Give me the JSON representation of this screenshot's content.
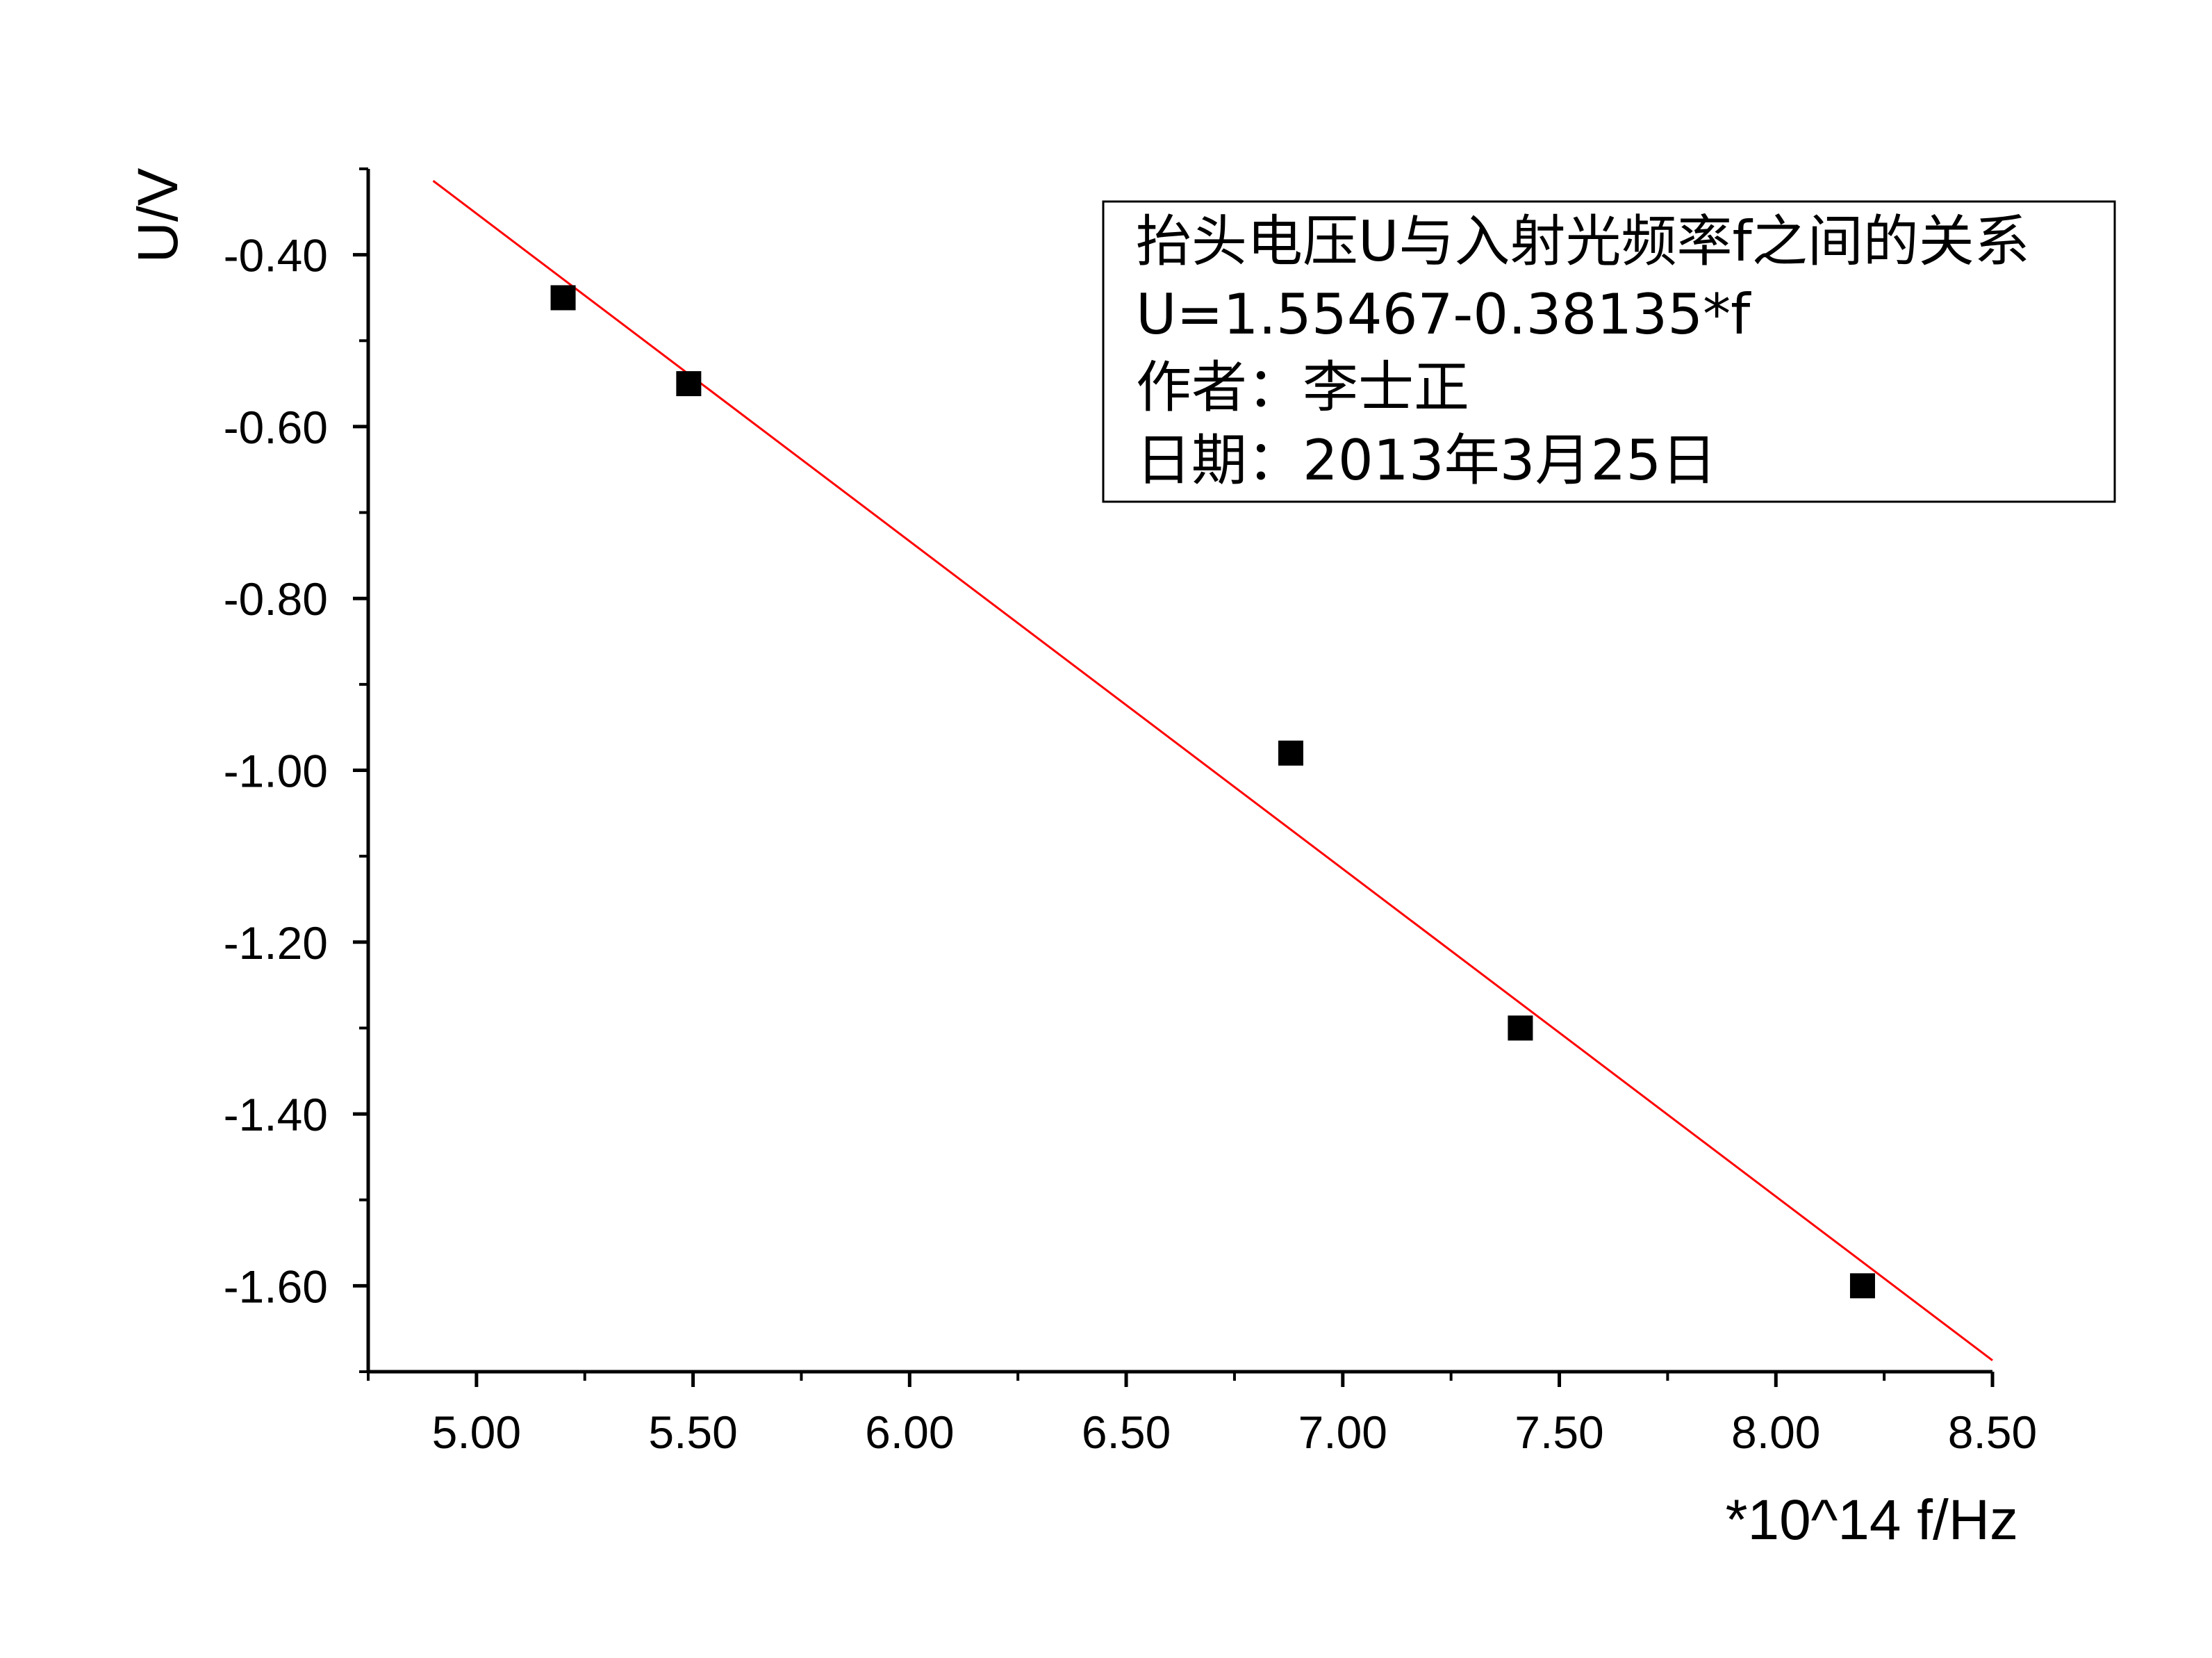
{
  "chart_data": {
    "type": "scatter",
    "xlabel": "*10^14 f/Hz",
    "ylabel": "U/V",
    "xlim": [
      4.75,
      8.5
    ],
    "ylim": [
      -1.7,
      -0.3
    ],
    "x_ticks": [
      "5.00",
      "5.50",
      "6.00",
      "6.50",
      "7.00",
      "7.50",
      "8.00",
      "8.50"
    ],
    "x_tick_values": [
      5.0,
      5.5,
      6.0,
      6.5,
      7.0,
      7.5,
      8.0,
      8.5
    ],
    "y_ticks": [
      "-0.40",
      "-0.60",
      "-0.80",
      "-1.00",
      "-1.20",
      "-1.40",
      "-1.60"
    ],
    "y_tick_values": [
      -0.4,
      -0.6,
      -0.8,
      -1.0,
      -1.2,
      -1.4,
      -1.6
    ],
    "series": [
      {
        "type": "scatter",
        "marker": "square",
        "color": "#000000",
        "points": [
          {
            "x": 5.2,
            "y": -0.45
          },
          {
            "x": 5.49,
            "y": -0.55
          },
          {
            "x": 6.88,
            "y": -0.98
          },
          {
            "x": 7.41,
            "y": -1.3
          },
          {
            "x": 8.2,
            "y": -1.6
          }
        ]
      },
      {
        "type": "line",
        "color": "#ff0000",
        "fit": {
          "intercept": 1.55467,
          "slope": -0.38135
        },
        "x_range": [
          4.9,
          8.5
        ]
      }
    ],
    "legend": {
      "placement": "top-right",
      "lines": [
        "抬头电压U与入射光频率f之间的关系",
        "U=1.55467-0.38135*f",
        "作者：李士正",
        "日期：2013年3月25日"
      ]
    },
    "grid": false
  }
}
